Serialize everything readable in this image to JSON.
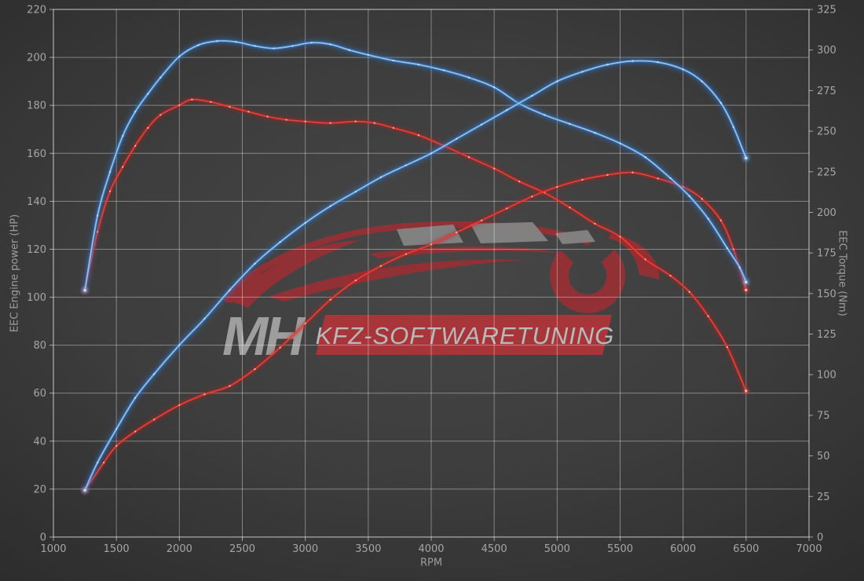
{
  "chart_data": {
    "type": "line",
    "title": "",
    "xlabel": "RPM",
    "ylabel_left": "EEC Engine power (HP)",
    "ylabel_right": "EEC Torque (Nm)",
    "x_range": [
      1000,
      7000
    ],
    "y_left_range": [
      0,
      220
    ],
    "y_right_range": [
      0,
      325
    ],
    "x_ticks": [
      1000,
      1500,
      2000,
      2500,
      3000,
      3500,
      4000,
      4500,
      5000,
      5500,
      6000,
      6500,
      7000
    ],
    "y_left_ticks": [
      0,
      20,
      40,
      60,
      80,
      100,
      120,
      140,
      160,
      180,
      200,
      220
    ],
    "y_right_ticks": [
      0,
      25,
      50,
      75,
      100,
      125,
      150,
      175,
      200,
      225,
      250,
      275,
      300,
      325
    ],
    "grid": true,
    "legend_position": "none",
    "colors": {
      "blue_core": "#8fc0ee",
      "blue_halo": "#2e7cd6",
      "red_core": "#e8413c",
      "red_halo": "#c4241f",
      "grid": "rgba(255,255,255,0.38)",
      "spine": "rgba(255,255,255,0.55)",
      "tick_text": "#a6a6a6",
      "axis_title_text": "#9d9d9d"
    },
    "series": [
      {
        "name": "stock-torque",
        "axis": "right",
        "unit": "Nm",
        "color_core": "#e8413c",
        "color_halo": "#c4241f",
        "marker_color": "#f6c2c1",
        "points": [
          [
            1250,
            152
          ],
          [
            1350,
            188
          ],
          [
            1450,
            213
          ],
          [
            1550,
            228
          ],
          [
            1650,
            241
          ],
          [
            1750,
            252
          ],
          [
            1850,
            260
          ],
          [
            2000,
            266
          ],
          [
            2100,
            269.5
          ],
          [
            2250,
            268
          ],
          [
            2400,
            265
          ],
          [
            2550,
            262
          ],
          [
            2700,
            259
          ],
          [
            2850,
            257
          ],
          [
            3000,
            256
          ],
          [
            3200,
            255
          ],
          [
            3400,
            256
          ],
          [
            3550,
            255
          ],
          [
            3700,
            252
          ],
          [
            3900,
            247.5
          ],
          [
            4100,
            241
          ],
          [
            4300,
            234
          ],
          [
            4500,
            227
          ],
          [
            4700,
            219
          ],
          [
            4900,
            212
          ],
          [
            5100,
            203
          ],
          [
            5300,
            193
          ],
          [
            5500,
            185
          ],
          [
            5700,
            171
          ],
          [
            5900,
            161
          ],
          [
            6050,
            151
          ],
          [
            6200,
            136
          ],
          [
            6350,
            117
          ],
          [
            6500,
            90
          ]
        ]
      },
      {
        "name": "stock-power",
        "axis": "left",
        "unit": "HP",
        "color_core": "#e8413c",
        "color_halo": "#c4241f",
        "marker_color": "#f6c2c1",
        "points": [
          [
            1250,
            19.5
          ],
          [
            1400,
            31
          ],
          [
            1500,
            38
          ],
          [
            1650,
            44
          ],
          [
            1800,
            49
          ],
          [
            2000,
            55
          ],
          [
            2200,
            59.5
          ],
          [
            2400,
            63
          ],
          [
            2600,
            70
          ],
          [
            2800,
            79
          ],
          [
            3000,
            89
          ],
          [
            3200,
            99
          ],
          [
            3400,
            107
          ],
          [
            3600,
            113
          ],
          [
            3800,
            118
          ],
          [
            4000,
            122
          ],
          [
            4200,
            127
          ],
          [
            4400,
            132
          ],
          [
            4600,
            137
          ],
          [
            4800,
            142
          ],
          [
            5000,
            146
          ],
          [
            5200,
            149
          ],
          [
            5400,
            151
          ],
          [
            5600,
            152
          ],
          [
            5800,
            149.5
          ],
          [
            6000,
            146
          ],
          [
            6150,
            141
          ],
          [
            6300,
            132
          ],
          [
            6400,
            120
          ],
          [
            6500,
            103
          ]
        ]
      },
      {
        "name": "tuned-torque",
        "axis": "right",
        "unit": "Nm",
        "color_core": "#8fc0ee",
        "color_halo": "#2e7cd6",
        "marker_color": "#d3e6f8",
        "points": [
          [
            1250,
            152
          ],
          [
            1350,
            198
          ],
          [
            1450,
            225
          ],
          [
            1550,
            247
          ],
          [
            1650,
            262
          ],
          [
            1750,
            273
          ],
          [
            1850,
            283
          ],
          [
            2000,
            296
          ],
          [
            2150,
            303
          ],
          [
            2300,
            305.5
          ],
          [
            2450,
            305
          ],
          [
            2600,
            302.5
          ],
          [
            2750,
            301
          ],
          [
            2900,
            302.5
          ],
          [
            3050,
            304.5
          ],
          [
            3200,
            303.5
          ],
          [
            3350,
            300
          ],
          [
            3500,
            297
          ],
          [
            3700,
            293.5
          ],
          [
            3900,
            291
          ],
          [
            4100,
            287.5
          ],
          [
            4300,
            283
          ],
          [
            4500,
            277
          ],
          [
            4700,
            267
          ],
          [
            4900,
            260
          ],
          [
            5100,
            254.5
          ],
          [
            5300,
            249
          ],
          [
            5500,
            242.5
          ],
          [
            5700,
            234
          ],
          [
            5900,
            221
          ],
          [
            6050,
            210
          ],
          [
            6200,
            196
          ],
          [
            6350,
            178
          ],
          [
            6450,
            166
          ],
          [
            6500,
            157
          ]
        ]
      },
      {
        "name": "tuned-power",
        "axis": "left",
        "unit": "HP",
        "color_core": "#8fc0ee",
        "color_halo": "#2e7cd6",
        "marker_color": "#d3e6f8",
        "points": [
          [
            1250,
            19.5
          ],
          [
            1350,
            31
          ],
          [
            1500,
            45
          ],
          [
            1650,
            58
          ],
          [
            1800,
            68
          ],
          [
            2000,
            80
          ],
          [
            2200,
            91
          ],
          [
            2400,
            103
          ],
          [
            2600,
            114
          ],
          [
            2800,
            123
          ],
          [
            3000,
            131
          ],
          [
            3200,
            138
          ],
          [
            3400,
            144
          ],
          [
            3600,
            150
          ],
          [
            3800,
            155
          ],
          [
            4000,
            160
          ],
          [
            4200,
            166
          ],
          [
            4400,
            172
          ],
          [
            4600,
            178
          ],
          [
            4800,
            184
          ],
          [
            5000,
            190
          ],
          [
            5200,
            194
          ],
          [
            5400,
            197
          ],
          [
            5600,
            198.5
          ],
          [
            5800,
            198
          ],
          [
            6000,
            195
          ],
          [
            6150,
            190
          ],
          [
            6300,
            181
          ],
          [
            6400,
            171
          ],
          [
            6500,
            158
          ]
        ]
      }
    ],
    "watermark": {
      "icon": "car-silhouette-logo",
      "brand": "MH",
      "banner_text": "KFZ-SOFTWARETUNING",
      "brand_color": "#9e9e9e",
      "car_color": "#9c2f34",
      "window_color": "#8d8d8d",
      "banner_color": "#b13438",
      "banner_text_color": "#b9b9b9"
    }
  }
}
